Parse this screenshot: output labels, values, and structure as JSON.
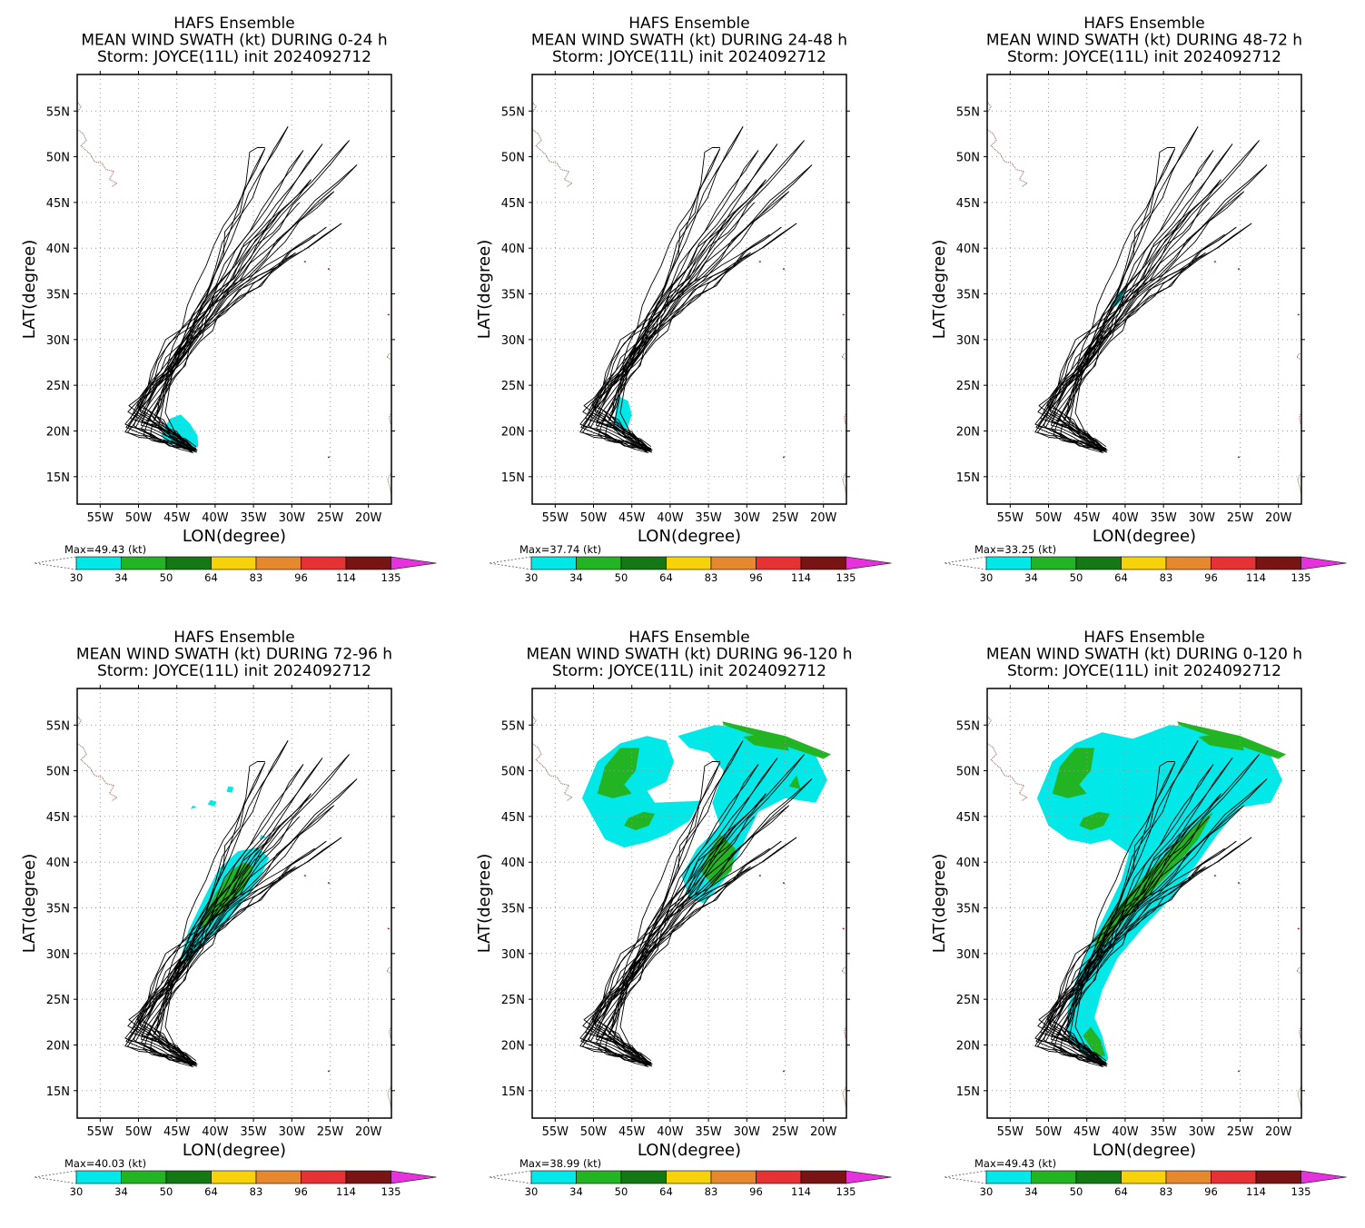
{
  "figure": {
    "panels": [
      {
        "title_lines": [
          "HAFS Ensemble",
          "MEAN WIND SWATH (kt) DURING  0-24 h",
          "Storm: JOYCE(11L) init 2024092712"
        ],
        "max_label": "Max=49.43 (kt)"
      },
      {
        "title_lines": [
          "HAFS Ensemble",
          "MEAN WIND SWATH (kt) DURING 24-48 h",
          "Storm: JOYCE(11L) init 2024092712"
        ],
        "max_label": "Max=37.74 (kt)"
      },
      {
        "title_lines": [
          "HAFS Ensemble",
          "MEAN WIND SWATH (kt) DURING 48-72 h",
          "Storm: JOYCE(11L) init 2024092712"
        ],
        "max_label": "Max=33.25 (kt)"
      },
      {
        "title_lines": [
          "HAFS Ensemble",
          "MEAN WIND SWATH (kt) DURING 72-96 h",
          "Storm: JOYCE(11L) init 2024092712"
        ],
        "max_label": "Max=40.03 (kt)"
      },
      {
        "title_lines": [
          "HAFS Ensemble",
          "MEAN WIND SWATH (kt) DURING 96-120 h",
          "Storm: JOYCE(11L) init 2024092712"
        ],
        "max_label": "Max=38.99 (kt)"
      },
      {
        "title_lines": [
          "HAFS Ensemble",
          "MEAN WIND SWATH (kt) DURING 0-120 h",
          "Storm: JOYCE(11L) init 2024092712"
        ],
        "max_label": "Max=49.43 (kt)"
      }
    ],
    "axes": {
      "xlabel": "LON(degree)",
      "ylabel": "LAT(degree)",
      "x_ticks": [
        "55W",
        "50W",
        "45W",
        "40W",
        "35W",
        "30W",
        "25W",
        "20W"
      ],
      "y_ticks": [
        "15N",
        "20N",
        "25N",
        "30N",
        "35N",
        "40N",
        "45N",
        "50N",
        "55N"
      ]
    },
    "colorbar": {
      "levels": [
        "30",
        "34",
        "50",
        "64",
        "83",
        "96",
        "114",
        "135"
      ],
      "colors": [
        "#00e8e8",
        "#22b422",
        "#147814",
        "#f5d20a",
        "#e6882d",
        "#e63232",
        "#781414",
        "#e632dc"
      ]
    }
  },
  "chart_data": [
    {
      "type": "map",
      "title": "MEAN WIND SWATH (kt) DURING  0-24 h",
      "xlabel": "LON(degree)",
      "ylabel": "LAT(degree)",
      "xlim": [
        -58,
        -17
      ],
      "ylim": [
        12,
        59
      ],
      "grid": true,
      "max_kt": 49.43,
      "swath_levels_kt": [
        30,
        34,
        50,
        64,
        83,
        96,
        114,
        135
      ],
      "swath_region": "around 43-47W, 18-21N (30-34 kt)"
    },
    {
      "type": "map",
      "title": "MEAN WIND SWATH (kt) DURING 24-48 h",
      "xlabel": "LON(degree)",
      "ylabel": "LAT(degree)",
      "xlim": [
        -58,
        -17
      ],
      "ylim": [
        12,
        59
      ],
      "grid": true,
      "max_kt": 37.74,
      "swath_levels_kt": [
        30,
        34,
        50,
        64,
        83,
        96,
        114,
        135
      ],
      "swath_region": "around 45-47W, 20-23N (30-34 kt)"
    },
    {
      "type": "map",
      "title": "MEAN WIND SWATH (kt) DURING 48-72 h",
      "xlabel": "LON(degree)",
      "ylabel": "LAT(degree)",
      "xlim": [
        -58,
        -17
      ],
      "ylim": [
        12,
        59
      ],
      "grid": true,
      "max_kt": 33.25,
      "swath_levels_kt": [
        30,
        34,
        50,
        64,
        83,
        96,
        114,
        135
      ],
      "swath_region": "around 40-42W, 34-35N (30-34 kt)"
    },
    {
      "type": "map",
      "title": "MEAN WIND SWATH (kt) DURING 72-96 h",
      "xlabel": "LON(degree)",
      "ylabel": "LAT(degree)",
      "xlim": [
        -58,
        -17
      ],
      "ylim": [
        12,
        59
      ],
      "grid": true,
      "max_kt": 40.03,
      "swath_levels_kt": [
        30,
        34,
        50,
        64,
        83,
        96,
        114,
        135
      ],
      "swath_region": "band 44-34W, 30-41N (30-50 kt)"
    },
    {
      "type": "map",
      "title": "MEAN WIND SWATH (kt) DURING 96-120 h",
      "xlabel": "LON(degree)",
      "ylabel": "LAT(degree)",
      "xlim": [
        -58,
        -17
      ],
      "ylim": [
        12,
        59
      ],
      "grid": true,
      "max_kt": 38.99,
      "swath_levels_kt": [
        30,
        34,
        50,
        64,
        83,
        96,
        114,
        135
      ],
      "swath_region": "patches 47-35W 42-54N and 36-24W 35-55N (30-50 kt)"
    },
    {
      "type": "map",
      "title": "MEAN WIND SWATH (kt) DURING 0-120 h",
      "xlabel": "LON(degree)",
      "ylabel": "LAT(degree)",
      "xlim": [
        -58,
        -17
      ],
      "ylim": [
        12,
        59
      ],
      "grid": true,
      "max_kt": 49.43,
      "swath_levels_kt": [
        30,
        34,
        50,
        64,
        83,
        96,
        114,
        135
      ],
      "swath_region": "union of all periods (30-50 kt)"
    }
  ]
}
